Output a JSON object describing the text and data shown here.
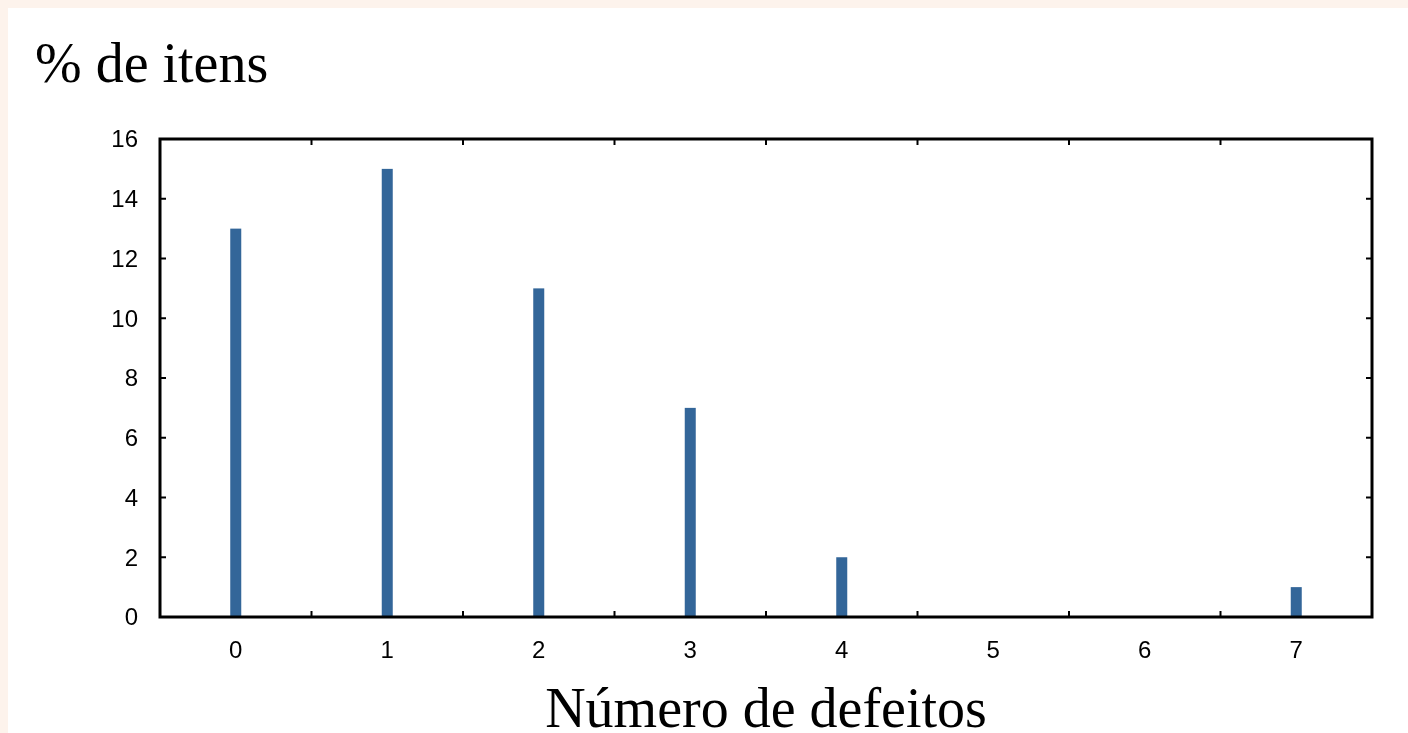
{
  "chart_data": {
    "type": "bar",
    "ylabel": "% de itens",
    "xlabel": "Número de defeitos",
    "categories": [
      "0",
      "1",
      "2",
      "3",
      "4",
      "5",
      "6",
      "7"
    ],
    "values": [
      13,
      15,
      11,
      7,
      2,
      0,
      0,
      1
    ],
    "color": "#336699",
    "ylim": [
      0,
      16
    ],
    "yticks": [
      0,
      2,
      4,
      6,
      8,
      10,
      12,
      14,
      16
    ],
    "grid": false
  }
}
